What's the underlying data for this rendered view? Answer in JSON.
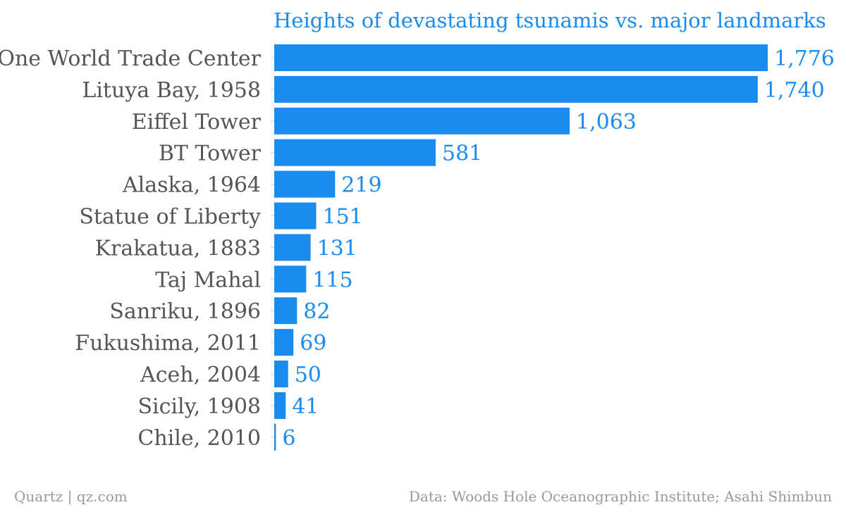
{
  "colors": {
    "bar": "#1a8cf0",
    "value_label": "#1a8cf0",
    "category_label": "#555555",
    "title": "#1a8cf0",
    "footer": "#999999"
  },
  "footer": {
    "source_left": "Quartz | qz.com",
    "source_right": "Data: Woods Hole Oceanographic Institute; Asahi Shimbun"
  },
  "chart_data": {
    "type": "bar",
    "orientation": "horizontal",
    "title": "Heights of devastating tsunamis vs. major landmarks",
    "xlabel": "",
    "ylabel": "",
    "grid": false,
    "categories": [
      "One World Trade Center",
      "Lituya Bay, 1958",
      "Eiffel Tower",
      "BT Tower",
      "Alaska, 1964",
      "Statue of Liberty",
      "Krakatua, 1883",
      "Taj Mahal",
      "Sanriku, 1896",
      "Fukushima, 2011",
      "Aceh, 2004",
      "Sicily, 1908",
      "Chile, 2010"
    ],
    "values": [
      1776,
      1740,
      1063,
      581,
      219,
      151,
      131,
      115,
      82,
      69,
      50,
      41,
      6
    ],
    "value_labels": [
      "1,776",
      "1,740",
      "1,063",
      "581",
      "219",
      "151",
      "131",
      "115",
      "82",
      "69",
      "50",
      "41",
      "6"
    ],
    "xlim": [
      0,
      1776
    ]
  }
}
